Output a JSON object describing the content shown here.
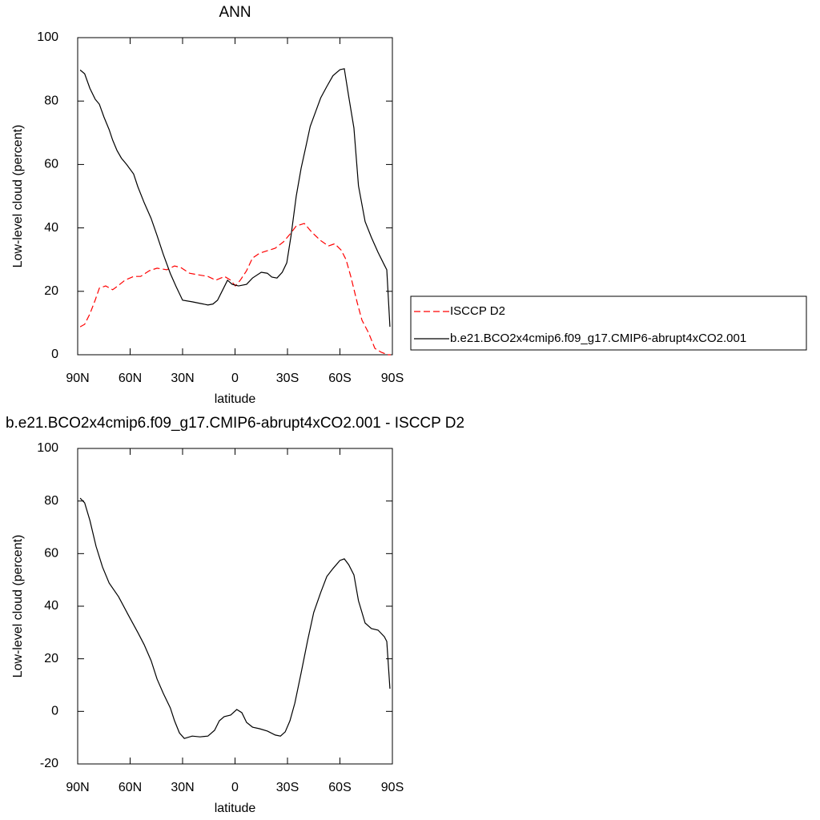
{
  "chart_data": [
    {
      "type": "line",
      "title": "ANN",
      "xlabel": "latitude",
      "ylabel": "Low-level cloud (percent)",
      "xlim": [
        90,
        -90
      ],
      "ylim": [
        0,
        100
      ],
      "xticks": [
        {
          "value": 90,
          "label": "90N"
        },
        {
          "value": 60,
          "label": "60N"
        },
        {
          "value": 30,
          "label": "30N"
        },
        0,
        {
          "value": -30,
          "label": "30S"
        },
        {
          "value": -60,
          "label": "60S"
        },
        {
          "value": -90,
          "label": "90S"
        }
      ],
      "yticks": [
        0,
        20,
        40,
        60,
        80,
        100
      ],
      "legend": "right",
      "series": [
        {
          "name": "ISCCP D2",
          "color": "#ff0000",
          "linestyle": "dashed",
          "x": [
            88.6,
            86,
            83,
            80,
            77.6,
            74,
            70,
            67,
            63,
            58,
            54,
            49,
            44.6,
            39,
            34.6,
            31,
            26,
            21,
            15.5,
            11,
            6,
            2.5,
            -0.2,
            -3,
            -6.6,
            -10,
            -14,
            -18.5,
            -23,
            -27.7,
            -31.4,
            -35,
            -39.6,
            -44,
            -49,
            -53.4,
            -57,
            -60.7,
            -63.5,
            -66.2,
            -69.9,
            -72.6,
            -76.3,
            -80,
            -83.6,
            -87.3,
            -89
          ],
          "values": [
            8.8,
            9.6,
            12.9,
            17.2,
            21,
            21.7,
            20.5,
            21.7,
            23.5,
            24.7,
            24.7,
            26.5,
            27.3,
            26.8,
            28,
            27.5,
            25.7,
            25.2,
            24.7,
            23.5,
            24.7,
            23.5,
            21.7,
            23.5,
            26.5,
            30.5,
            32,
            32.8,
            33.6,
            35.6,
            38,
            40.6,
            41.4,
            38.6,
            36,
            34.3,
            35,
            33,
            30,
            24.7,
            16.4,
            10.9,
            7,
            2,
            0.8,
            0,
            0
          ]
        },
        {
          "name": "b.e21.BCO2x4cmip6.f09_g17.CMIP6-abrupt4xCO2.001",
          "color": "#000000",
          "linestyle": "solid",
          "x": [
            88.6,
            86,
            83,
            80,
            77.6,
            75,
            72,
            70,
            67.5,
            65,
            62,
            58,
            55.6,
            52,
            48,
            44.6,
            41,
            37,
            33.7,
            30,
            24.5,
            20,
            15.5,
            12.6,
            10,
            7,
            4.3,
            1.6,
            -2,
            -6.6,
            -10,
            -15,
            -18.5,
            -21,
            -24,
            -27,
            -29.6,
            -32,
            -35,
            -37.8,
            -40.5,
            -43,
            -46,
            -49,
            -52.5,
            -56,
            -60,
            -62.5,
            -65,
            -68,
            -70.6,
            -74.4,
            -78,
            -81.8,
            -85.4,
            -86.8,
            -88.6
          ],
          "values": [
            89.8,
            88.6,
            84,
            80.6,
            79,
            75,
            71,
            67.7,
            64.4,
            62,
            60,
            57,
            53,
            48,
            43,
            37.6,
            31.6,
            25.6,
            21.5,
            17.2,
            16.7,
            16.2,
            15.7,
            16,
            17.2,
            20.5,
            23.5,
            22.2,
            21.7,
            22.2,
            24.2,
            26,
            25.7,
            24.5,
            24.2,
            26,
            29,
            37.4,
            50,
            58.8,
            65.6,
            72,
            76.5,
            81,
            84.6,
            88,
            89.9,
            90.2,
            81.5,
            71.5,
            53.3,
            42,
            37,
            32.3,
            28.3,
            26.8,
            8.8
          ]
        }
      ]
    },
    {
      "type": "line",
      "title": "b.e21.BCO2x4cmip6.f09_g17.CMIP6-abrupt4xCO2.001 - ISCCP D2",
      "xlabel": "latitude",
      "ylabel": "Low-level cloud (percent)",
      "xlim": [
        90,
        -90
      ],
      "ylim": [
        -20,
        100
      ],
      "xticks": [
        {
          "value": 90,
          "label": "90N"
        },
        {
          "value": 60,
          "label": "60N"
        },
        {
          "value": 30,
          "label": "30N"
        },
        0,
        {
          "value": -30,
          "label": "30S"
        },
        {
          "value": -60,
          "label": "60S"
        },
        {
          "value": -90,
          "label": "90S"
        }
      ],
      "yticks": [
        -20,
        0,
        20,
        40,
        60,
        80,
        100
      ],
      "series": [
        {
          "color": "#000000",
          "linestyle": "solid",
          "x": [
            88.6,
            86,
            83,
            79.5,
            75.8,
            72,
            66.6,
            61,
            55.6,
            52,
            48,
            44.6,
            41,
            37,
            34.6,
            31.8,
            29,
            24.5,
            20,
            15.5,
            11.7,
            9,
            6.2,
            2.5,
            -1,
            -3.9,
            -6.6,
            -10,
            -14,
            -18.5,
            -23,
            -26,
            -28.7,
            -31.4,
            -34.2,
            -37.8,
            -41.5,
            -45,
            -49,
            -52.5,
            -56,
            -60,
            -62.5,
            -65,
            -68,
            -70.6,
            -74.4,
            -78,
            -81.8,
            -85.4,
            -86.8,
            -88.6
          ],
          "values": [
            81.1,
            79.3,
            72.6,
            62.8,
            54.9,
            48.8,
            43.6,
            36.6,
            30,
            25.4,
            19.3,
            12.3,
            6.8,
            1.3,
            -3.6,
            -8.2,
            -10.3,
            -9.4,
            -9.7,
            -9.4,
            -7.2,
            -3.6,
            -2,
            -1.4,
            0.7,
            -0.5,
            -4.2,
            -6,
            -6.6,
            -7.5,
            -9,
            -9.4,
            -7.8,
            -3.6,
            3.1,
            14.6,
            26.9,
            37.6,
            45.2,
            51.3,
            54.3,
            57.4,
            58,
            55.8,
            51.9,
            42.1,
            33.6,
            31.5,
            30.9,
            28.4,
            26.6,
            8.6
          ]
        }
      ]
    }
  ]
}
